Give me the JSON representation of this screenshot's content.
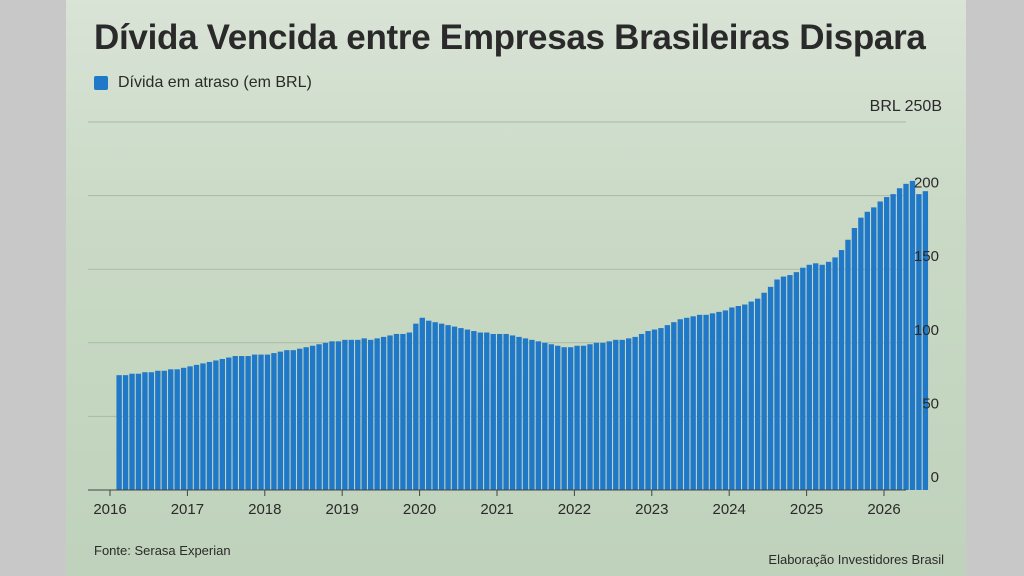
{
  "title": "Dívida Vencida entre Empresas Brasileiras Dispara",
  "legend_label": "Dívida em atraso (em BRL)",
  "unit_label": "BRL 250B",
  "source": "Fonte: Serasa Experian",
  "credit": "Elaboração Investidores Brasil",
  "colors": {
    "bar": "#1f78c8",
    "grid": "#a9b9a6",
    "axis": "#444444"
  },
  "chart_data": {
    "type": "bar",
    "x_start": "2016-02",
    "x_step": "month",
    "ylim": [
      0,
      250
    ],
    "yticks": [
      0,
      50,
      100,
      150,
      200
    ],
    "ytick_labels": [
      "0",
      "50",
      "100",
      "150",
      "200"
    ],
    "xticks": [
      "2016",
      "2017",
      "2018",
      "2019",
      "2020",
      "2021",
      "2022",
      "2023",
      "2024",
      "2025",
      "2026"
    ],
    "grid": true,
    "legend_position": "top-left",
    "series": [
      {
        "name": "Dívida em atraso (em BRL)",
        "values": [
          78,
          78,
          79,
          79,
          80,
          80,
          81,
          81,
          82,
          82,
          83,
          84,
          85,
          86,
          87,
          88,
          89,
          90,
          91,
          91,
          91,
          92,
          92,
          92,
          93,
          94,
          95,
          95,
          96,
          97,
          98,
          99,
          100,
          101,
          101,
          102,
          102,
          102,
          103,
          102,
          103,
          104,
          105,
          106,
          106,
          107,
          113,
          117,
          115,
          114,
          113,
          112,
          111,
          110,
          109,
          108,
          107,
          107,
          106,
          106,
          106,
          105,
          104,
          103,
          102,
          101,
          100,
          99,
          98,
          97,
          97,
          98,
          98,
          99,
          100,
          100,
          101,
          102,
          102,
          103,
          104,
          106,
          108,
          109,
          110,
          112,
          114,
          116,
          117,
          118,
          119,
          119,
          120,
          121,
          122,
          124,
          125,
          126,
          128,
          130,
          134,
          138,
          143,
          145,
          146,
          148,
          151,
          153,
          154,
          153,
          155,
          158,
          163,
          170,
          178,
          185,
          189,
          192,
          196,
          199,
          201,
          205,
          208,
          210,
          201,
          203
        ]
      }
    ]
  }
}
